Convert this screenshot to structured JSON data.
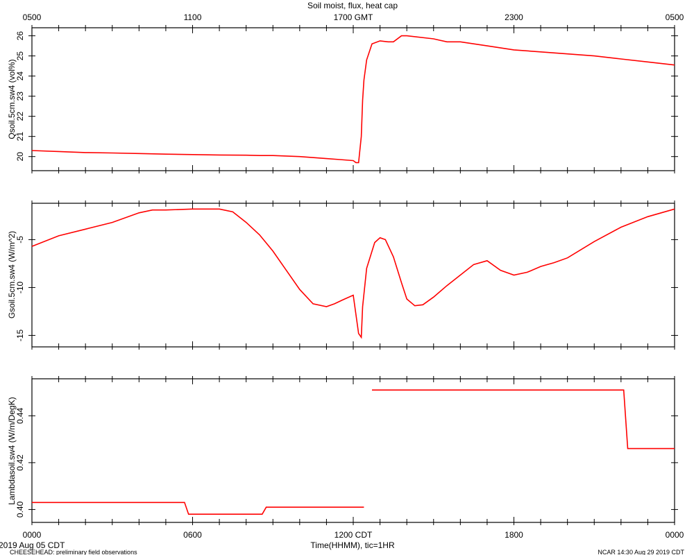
{
  "title": "Soil moist, flux, heat cap",
  "top_axis": {
    "ticks": [
      "0500",
      "1100",
      "1700 GMT",
      "2300",
      "0500"
    ]
  },
  "bottom_axis": {
    "ticks": [
      "0000",
      "0600",
      "1200 CDT",
      "1800",
      "0000"
    ],
    "date_label": "2019 Aug 05 CDT",
    "xlabel": "Time(HHMM), tic=1HR"
  },
  "footer": {
    "left": "CHEESEHEAD: preliminary field observations",
    "right": "NCAR 14:30 Aug 29 2019 CDT"
  },
  "colors": {
    "series": "#ff0000",
    "axis": "#000000"
  },
  "chart_data": [
    {
      "type": "line",
      "ylabel": "Qsoil.5cm.sw4 (vol%)",
      "xlim": [
        0,
        24
      ],
      "ylim": [
        19.3,
        26.4
      ],
      "yticks": [
        20,
        21,
        22,
        23,
        24,
        25,
        26
      ],
      "series": [
        {
          "x": [
            0,
            1,
            2,
            3,
            4,
            5,
            6,
            7,
            8,
            8.5,
            9,
            10,
            11,
            11.5,
            12,
            12.1,
            12.2,
            12.3,
            12.35,
            12.4,
            12.5,
            12.7,
            13,
            13.3,
            13.5,
            13.8,
            14,
            15,
            15.5,
            16,
            17,
            18,
            19,
            20,
            21,
            22,
            23,
            24
          ],
          "values": [
            20.3,
            20.25,
            20.2,
            20.18,
            20.15,
            20.12,
            20.1,
            20.08,
            20.07,
            20.05,
            20.05,
            20.0,
            19.9,
            19.85,
            19.8,
            19.7,
            19.7,
            21.0,
            22.8,
            23.8,
            24.8,
            25.6,
            25.75,
            25.7,
            25.7,
            26.0,
            26.0,
            25.85,
            25.7,
            25.7,
            25.5,
            25.3,
            25.2,
            25.1,
            25.0,
            24.85,
            24.7,
            24.55
          ]
        }
      ]
    },
    {
      "type": "line",
      "ylabel": "Gsoil.5cm.sw4 (W/m^2)",
      "xlim": [
        0,
        24
      ],
      "ylim": [
        -16.2,
        -1.2
      ],
      "yticks": [
        -5,
        -10,
        -15
      ],
      "series": [
        {
          "x": [
            0,
            1,
            2,
            3,
            4,
            4.5,
            5,
            6,
            7,
            7.5,
            8,
            8.5,
            9,
            9.5,
            10,
            10.5,
            11,
            11.3,
            11.6,
            12,
            12.2,
            12.3,
            12.35,
            12.5,
            12.8,
            13,
            13.2,
            13.5,
            13.8,
            14,
            14.3,
            14.6,
            15,
            15.5,
            16,
            16.5,
            17,
            17.5,
            18,
            18.5,
            19,
            19.5,
            20,
            21,
            22,
            23,
            24
          ],
          "values": [
            -5.7,
            -4.6,
            -3.9,
            -3.2,
            -2.2,
            -1.9,
            -1.9,
            -1.8,
            -1.8,
            -2.1,
            -3.2,
            -4.5,
            -6.2,
            -8.2,
            -10.2,
            -11.7,
            -12.0,
            -11.7,
            -11.3,
            -10.8,
            -14.8,
            -15.2,
            -12.0,
            -8.0,
            -5.3,
            -4.8,
            -5.0,
            -6.8,
            -9.5,
            -11.2,
            -11.9,
            -11.8,
            -11.0,
            -9.8,
            -8.7,
            -7.6,
            -7.2,
            -8.2,
            -8.7,
            -8.4,
            -7.8,
            -7.4,
            -6.9,
            -5.2,
            -3.7,
            -2.6,
            -1.8
          ]
        }
      ]
    },
    {
      "type": "line",
      "ylabel": "Lambdasoil.sw4 (W/m/DegK)",
      "xlim": [
        0,
        24
      ],
      "ylim": [
        0.3945,
        0.4558
      ],
      "yticks": [
        0.4,
        0.42,
        0.44
      ],
      "series": [
        {
          "segments": [
            {
              "x": [
                0,
                5.7,
                5.85,
                8.6,
                8.75,
                12.4
              ],
              "values": [
                0.403,
                0.403,
                0.398,
                0.398,
                0.401,
                0.401
              ]
            },
            {
              "x": [
                12.7,
                22.1,
                22.25,
                24
              ],
              "values": [
                0.451,
                0.451,
                0.426,
                0.426
              ]
            }
          ]
        }
      ]
    }
  ]
}
